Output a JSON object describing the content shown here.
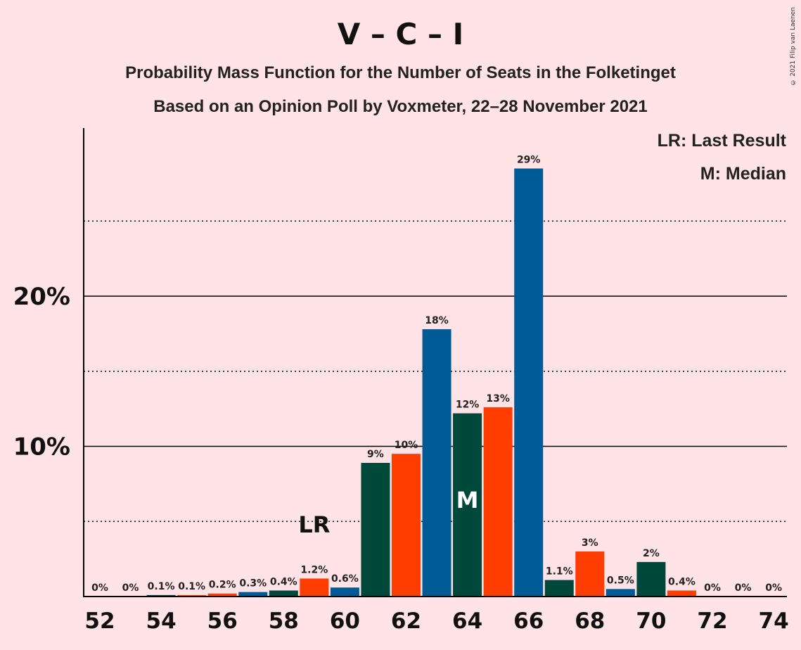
{
  "header": {
    "title": "V – C – I",
    "subtitle_1": "Probability Mass Function for the Number of Seats in the Folketinget",
    "subtitle_2": "Based on an Opinion Poll by Voxmeter, 22–28 November 2021",
    "copyright": "© 2021 Filip van Laenen"
  },
  "legend": {
    "lr": "LR: Last Result",
    "m": "M: Median"
  },
  "colors": {
    "background": "#FFE3E6",
    "blue": "#005A96",
    "dark_green": "#00483A",
    "orange": "#FF3D00"
  },
  "chart_data": {
    "type": "bar",
    "x": [
      52,
      53,
      54,
      55,
      56,
      57,
      58,
      59,
      60,
      61,
      62,
      63,
      64,
      65,
      66,
      67,
      68,
      69,
      70,
      71,
      72,
      73,
      74
    ],
    "values": [
      0,
      0,
      0.1,
      0.1,
      0.2,
      0.3,
      0.4,
      1.2,
      0.6,
      8.9,
      9.5,
      17.8,
      12.2,
      12.6,
      28.5,
      1.1,
      3.0,
      0.5,
      2.3,
      0.4,
      0,
      0,
      0
    ],
    "labels": [
      "0%",
      "0%",
      "0.1%",
      "0.1%",
      "0.2%",
      "0.3%",
      "0.4%",
      "1.2%",
      "0.6%",
      "9%",
      "10%",
      "18%",
      "12%",
      "13%",
      "29%",
      "1.1%",
      "3%",
      "0.5%",
      "2%",
      "0.4%",
      "0%",
      "0%",
      "0%"
    ],
    "bar_colors": [
      "orange",
      "blue",
      "dark_green",
      "orange",
      "orange",
      "blue",
      "dark_green",
      "orange",
      "blue",
      "dark_green",
      "orange",
      "blue",
      "dark_green",
      "orange",
      "blue",
      "dark_green",
      "orange",
      "blue",
      "dark_green",
      "orange",
      "blue",
      "dark_green",
      "orange"
    ],
    "x_tick_labels": [
      "52",
      "54",
      "56",
      "58",
      "60",
      "62",
      "64",
      "66",
      "68",
      "70",
      "72",
      "74"
    ],
    "y_tick_labels": [
      {
        "value": 10,
        "label": "10%"
      },
      {
        "value": 20,
        "label": "20%"
      }
    ],
    "y_dotted_gridlines": [
      5,
      15,
      25
    ],
    "ylim": [
      0,
      31
    ],
    "last_result": {
      "x": 59,
      "label": "LR"
    },
    "median": {
      "x": 64,
      "label": "M"
    }
  }
}
